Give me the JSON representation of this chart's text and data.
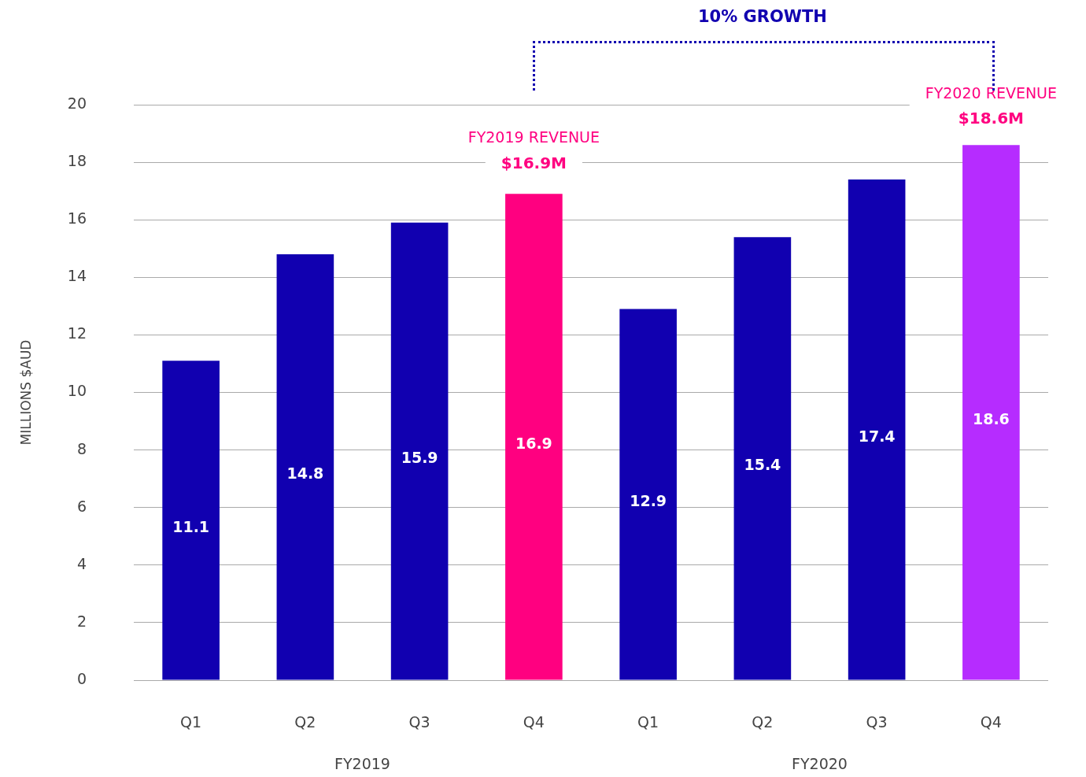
{
  "chart_data": {
    "type": "bar",
    "ylabel": "MILLIONS $AUD",
    "categories": [
      "Q1",
      "Q2",
      "Q3",
      "Q4",
      "Q1",
      "Q2",
      "Q3",
      "Q4"
    ],
    "values": [
      11.1,
      14.8,
      15.9,
      16.9,
      12.9,
      15.4,
      17.4,
      18.6
    ],
    "colors": [
      "#1100b0",
      "#1100b0",
      "#1100b0",
      "#ff0080",
      "#1100b0",
      "#1100b0",
      "#1100b0",
      "#b62cff"
    ],
    "data_labels": true,
    "ylim": [
      0,
      20
    ],
    "yticks": [
      0,
      2,
      4,
      6,
      8,
      10,
      12,
      14,
      16,
      18,
      20
    ],
    "grid": "y",
    "legend": false,
    "annotations": [
      "10% GROWTH",
      "FY2019 REVENUE",
      "$16.9M",
      "FY2020 REVENUE",
      "$18.6M",
      "FY2019",
      "FY2020"
    ]
  }
}
